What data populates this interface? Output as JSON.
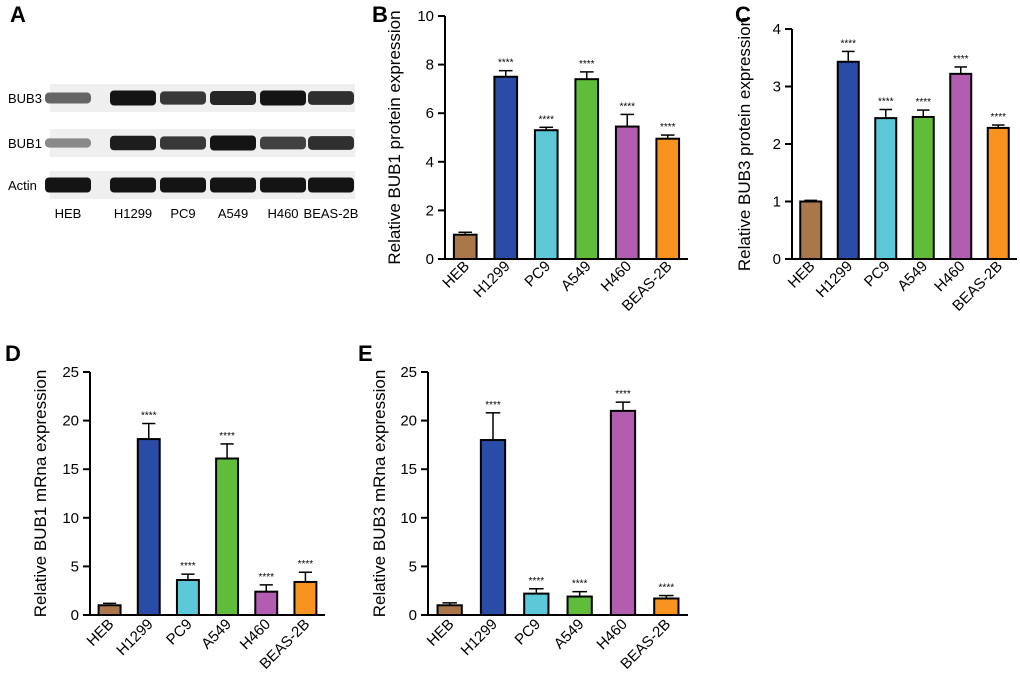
{
  "palette": {
    "HEB": "#A9774A",
    "H1299": "#2A4CA6",
    "PC9": "#5DC8D8",
    "A549": "#5FBD3A",
    "H460": "#B25DB0",
    "BEAS-2B": "#F7931E"
  },
  "blot": {
    "label": "A",
    "rows": [
      "BUB3",
      "BUB1",
      "Actin"
    ],
    "lanes": [
      "HEB",
      "H1299",
      "PC9",
      "A549",
      "H460",
      "BEAS-2B"
    ],
    "band_intensity": {
      "BUB3": [
        0.55,
        1.0,
        0.8,
        0.9,
        1.0,
        0.85
      ],
      "BUB1": [
        0.35,
        0.95,
        0.8,
        1.0,
        0.75,
        0.85
      ],
      "Actin": [
        1.0,
        1.0,
        1.0,
        1.0,
        1.0,
        1.0
      ]
    }
  },
  "chart_data": [
    {
      "panel": "B",
      "type": "bar",
      "categories": [
        "HEB",
        "H1299",
        "PC9",
        "A549",
        "H460",
        "BEAS-2B"
      ],
      "values": [
        1.0,
        7.5,
        5.3,
        7.4,
        5.45,
        4.95
      ],
      "errors": [
        0.1,
        0.25,
        0.12,
        0.3,
        0.5,
        0.15
      ],
      "significance": [
        "",
        "****",
        "****",
        "****",
        "****",
        "****"
      ],
      "ylabel": "Relative  BUB1 protein expression",
      "ylim": [
        0,
        10
      ],
      "yticks": [
        0,
        2,
        4,
        6,
        8,
        10
      ]
    },
    {
      "panel": "C",
      "type": "bar",
      "categories": [
        "HEB",
        "H1299",
        "PC9",
        "A549",
        "H460",
        "BEAS-2B"
      ],
      "values": [
        1.0,
        3.43,
        2.45,
        2.47,
        3.22,
        2.28
      ],
      "errors": [
        0.02,
        0.18,
        0.15,
        0.12,
        0.12,
        0.05
      ],
      "significance": [
        "",
        "****",
        "****",
        "****",
        "****",
        "****"
      ],
      "ylabel": "Relative BUB3 protein expression",
      "ylim": [
        0,
        4
      ],
      "yticks": [
        0,
        1,
        2,
        3,
        4
      ]
    },
    {
      "panel": "D",
      "type": "bar",
      "categories": [
        "HEB",
        "H1299",
        "PC9",
        "A549",
        "H460",
        "BEAS-2B"
      ],
      "values": [
        1.0,
        18.1,
        3.6,
        16.1,
        2.4,
        3.4
      ],
      "errors": [
        0.2,
        1.6,
        0.6,
        1.5,
        0.7,
        1.0
      ],
      "significance": [
        "",
        "****",
        "****",
        "****",
        "****",
        "****"
      ],
      "ylabel": "Relative BUB1 mRna expression",
      "ylim": [
        0,
        25
      ],
      "yticks": [
        0,
        5,
        10,
        15,
        20,
        25
      ]
    },
    {
      "panel": "E",
      "type": "bar",
      "categories": [
        "HEB",
        "H1299",
        "PC9",
        "A549",
        "H460",
        "BEAS-2B"
      ],
      "values": [
        1.0,
        18.0,
        2.2,
        1.9,
        21.0,
        1.7
      ],
      "errors": [
        0.25,
        2.8,
        0.5,
        0.5,
        0.9,
        0.3
      ],
      "significance": [
        "",
        "****",
        "****",
        "****",
        "****",
        "****"
      ],
      "ylabel": "Relative BUB3 mRna expression",
      "ylim": [
        0,
        25
      ],
      "yticks": [
        0,
        5,
        10,
        15,
        20,
        25
      ]
    }
  ]
}
